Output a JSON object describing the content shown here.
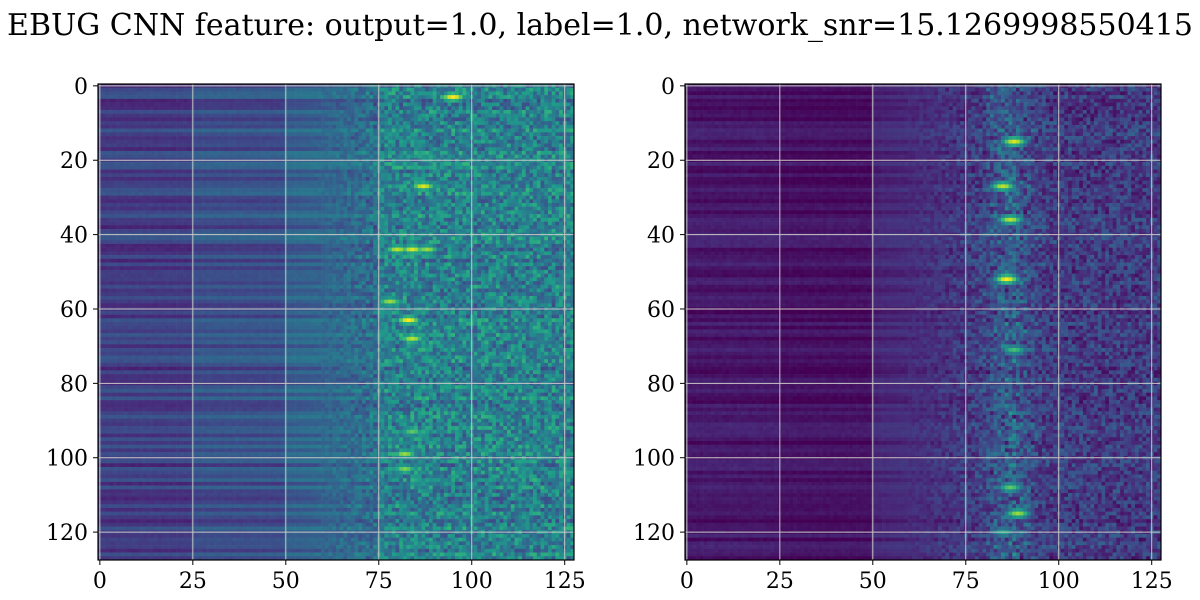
{
  "figure": {
    "title": "EBUG CNN feature: output=1.0, label=1.0, network_snr=15.1269998550415"
  },
  "colors": {
    "background": "#ffffff",
    "grid": "#c8c8c8",
    "axis": "#000000",
    "text": "#000000",
    "colormap": [
      "#440154",
      "#482878",
      "#3e4989",
      "#31688e",
      "#26828e",
      "#1f9e89",
      "#35b779",
      "#6ece58",
      "#b5de2b",
      "#fde725"
    ]
  },
  "chart_data": [
    {
      "type": "heatmap",
      "title": "",
      "xlabel": "",
      "ylabel": "",
      "shape": [
        128,
        128
      ],
      "xlim": [
        -0.5,
        127.5
      ],
      "ylim": [
        127.5,
        -0.5
      ],
      "y_inverted": true,
      "grid": true,
      "colormap": "viridis",
      "xticks": [
        0,
        25,
        50,
        75,
        100,
        125
      ],
      "xtick_labels": [
        "0",
        "25",
        "50",
        "75",
        "100",
        "125"
      ],
      "yticks": [
        0,
        20,
        40,
        60,
        80,
        100,
        120
      ],
      "ytick_labels": [
        "0",
        "20",
        "40",
        "60",
        "80",
        "100",
        "120"
      ],
      "values_description_level": {
        "columns_0_to_25": 0.18,
        "columns_25_to_50": 0.24,
        "columns_50_to_75": 0.3,
        "columns_75_to_127": 0.42
      },
      "hotspots": [
        {
          "x": 95,
          "y": 3,
          "value": 1.0
        },
        {
          "x": 87,
          "y": 27,
          "value": 0.95
        },
        {
          "x": 80,
          "y": 44,
          "value": 0.9
        },
        {
          "x": 84,
          "y": 44,
          "value": 0.95
        },
        {
          "x": 88,
          "y": 44,
          "value": 0.85
        },
        {
          "x": 78,
          "y": 58,
          "value": 0.85
        },
        {
          "x": 83,
          "y": 63,
          "value": 1.0
        },
        {
          "x": 84,
          "y": 68,
          "value": 0.9
        },
        {
          "x": 82,
          "y": 99,
          "value": 0.85
        },
        {
          "x": 82,
          "y": 103,
          "value": 0.8
        },
        {
          "x": 84,
          "y": 93,
          "value": 0.75
        }
      ]
    },
    {
      "type": "heatmap",
      "title": "",
      "xlabel": "",
      "ylabel": "",
      "shape": [
        128,
        128
      ],
      "xlim": [
        -0.5,
        127.5
      ],
      "ylim": [
        127.5,
        -0.5
      ],
      "y_inverted": true,
      "grid": true,
      "colormap": "viridis",
      "xticks": [
        0,
        25,
        50,
        75,
        100,
        125
      ],
      "xtick_labels": [
        "0",
        "25",
        "50",
        "75",
        "100",
        "125"
      ],
      "yticks": [
        0,
        20,
        40,
        60,
        80,
        100,
        120
      ],
      "ytick_labels": [
        "0",
        "20",
        "40",
        "60",
        "80",
        "100",
        "120"
      ],
      "values_description_level": {
        "columns_0_to_25": 0.06,
        "columns_25_to_50": 0.04,
        "columns_50_to_75": 0.1,
        "columns_75_to_127": 0.16
      },
      "hotspots": [
        {
          "x": 88,
          "y": 15,
          "value": 0.95
        },
        {
          "x": 85,
          "y": 27,
          "value": 0.9
        },
        {
          "x": 87,
          "y": 36,
          "value": 0.9
        },
        {
          "x": 86,
          "y": 52,
          "value": 1.0
        },
        {
          "x": 88,
          "y": 71,
          "value": 0.7
        },
        {
          "x": 87,
          "y": 108,
          "value": 0.75
        },
        {
          "x": 89,
          "y": 115,
          "value": 0.85
        },
        {
          "x": 85,
          "y": 120,
          "value": 0.6
        }
      ]
    }
  ]
}
